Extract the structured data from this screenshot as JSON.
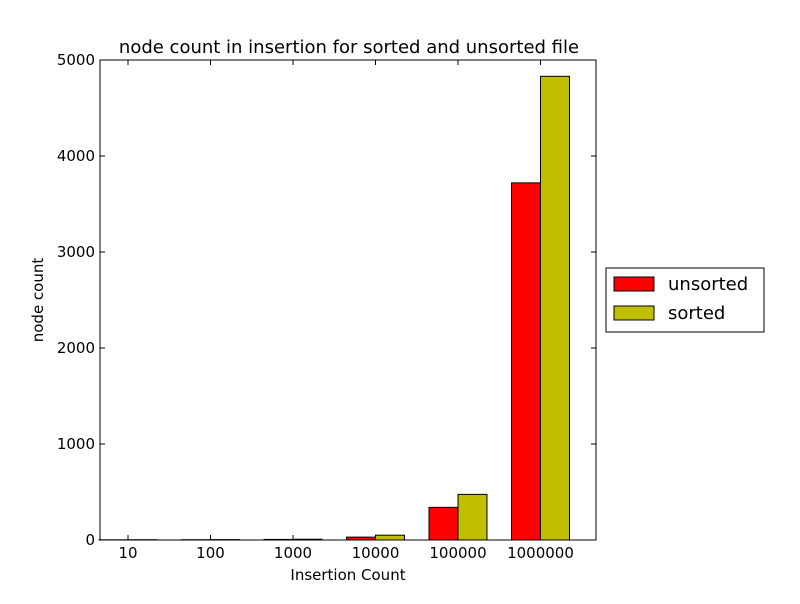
{
  "chart_data": {
    "type": "bar",
    "title": "node count in insertion for sorted and unsorted file",
    "xlabel": "Insertion Count",
    "ylabel": "node count",
    "categories": [
      "10",
      "100",
      "1000",
      "10000",
      "100000",
      "1000000"
    ],
    "ylim": [
      0,
      5000
    ],
    "yticks": [
      "0",
      "1000",
      "2000",
      "3000",
      "4000",
      "5000"
    ],
    "grid": false,
    "legend_position": "right",
    "series": [
      {
        "name": "unsorted",
        "color": "#ff0000",
        "values": [
          2,
          3,
          6,
          30,
          340,
          3720
        ]
      },
      {
        "name": "sorted",
        "color": "#bfbf00",
        "values": [
          3,
          4,
          8,
          50,
          475,
          4830
        ]
      }
    ]
  }
}
